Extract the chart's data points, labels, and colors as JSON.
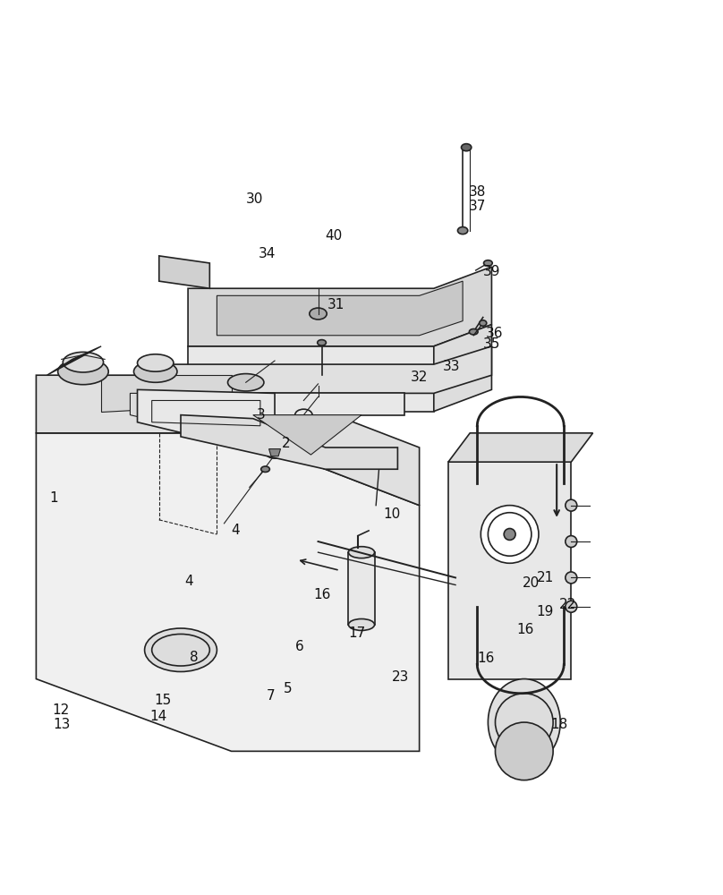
{
  "title": "",
  "bg_color": "#ffffff",
  "fig_width": 8.08,
  "fig_height": 10.0,
  "dpi": 100,
  "label_fontsize": 11,
  "line_color": "#222222",
  "text_color": "#111111"
}
